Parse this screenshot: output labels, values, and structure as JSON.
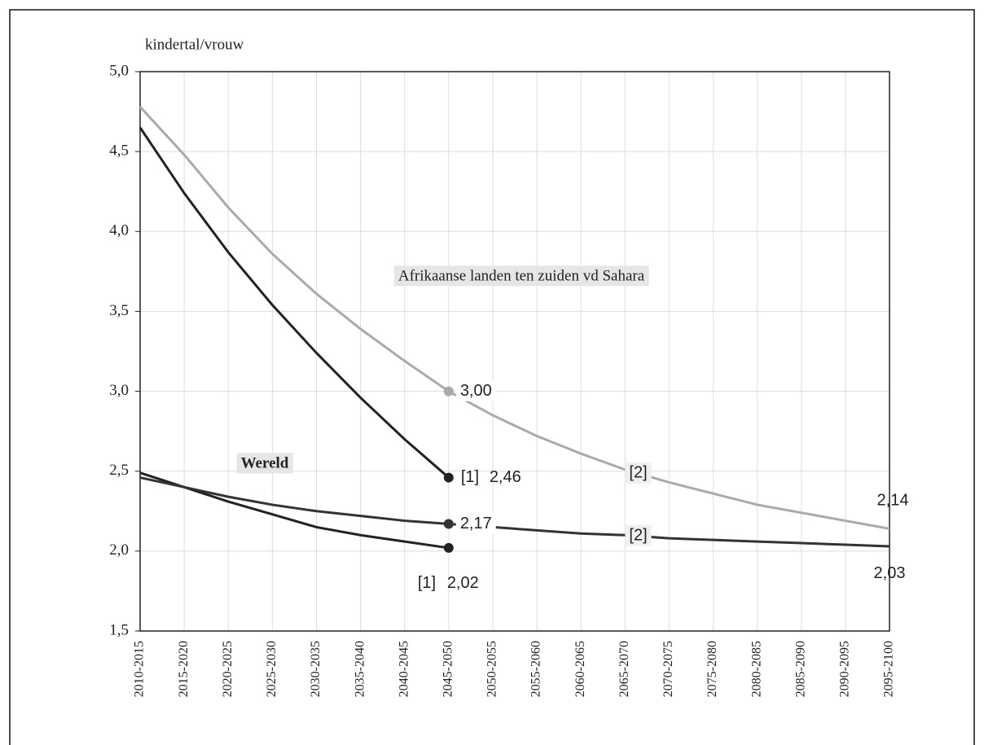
{
  "chart_data": {
    "type": "line",
    "y_label": "kindertal/vrouw",
    "categories": [
      "2010-2015",
      "2015-2020",
      "2020-2025",
      "2025-2030",
      "2030-2035",
      "2035-2040",
      "2040-2045",
      "2045-2050",
      "2050-2055",
      "2055-2060",
      "2060-2065",
      "2065-2070",
      "2070-2075",
      "2075-2080",
      "2080-2085",
      "2085-2090",
      "2090-2095",
      "2095-2100"
    ],
    "ylim": [
      1.5,
      5.0
    ],
    "yticks": [
      {
        "value": 1.5,
        "label": "1,5"
      },
      {
        "value": 2.0,
        "label": "2,0"
      },
      {
        "value": 2.5,
        "label": "2,5"
      },
      {
        "value": 3.0,
        "label": "3,0"
      },
      {
        "value": 3.5,
        "label": "3,5"
      },
      {
        "value": 4.0,
        "label": "4,0"
      },
      {
        "value": 4.5,
        "label": "4,5"
      },
      {
        "value": 5.0,
        "label": "5,0"
      }
    ],
    "grid": true,
    "groups": [
      {
        "name": "Afrikaanse landen ten zuiden vd Sahara",
        "series": [
          {
            "name": "[1]",
            "color": "#222222",
            "values": [
              4.65,
              4.24,
              3.87,
              3.54,
              3.24,
              2.96,
              2.7,
              2.46,
              null,
              null,
              null,
              null,
              null,
              null,
              null,
              null,
              null,
              null
            ],
            "value_labels": [
              null,
              null,
              null,
              null,
              null,
              null,
              null,
              "2,46",
              null,
              null,
              null,
              null,
              null,
              null,
              null,
              null,
              null,
              null
            ]
          },
          {
            "name": "[2]",
            "color": "#aaaaaa",
            "values": [
              4.78,
              4.48,
              4.15,
              3.86,
              3.61,
              3.39,
              3.19,
              3.0,
              2.85,
              2.72,
              2.61,
              2.51,
              2.43,
              2.36,
              2.29,
              2.24,
              2.19,
              2.14
            ],
            "value_labels": [
              null,
              null,
              null,
              null,
              null,
              null,
              null,
              "3,00",
              null,
              null,
              null,
              null,
              null,
              null,
              null,
              null,
              null,
              "2,14"
            ]
          }
        ]
      },
      {
        "name": "Wereld",
        "series": [
          {
            "name": "[1]",
            "color": "#222222",
            "values": [
              2.49,
              2.4,
              2.31,
              2.23,
              2.15,
              2.1,
              2.06,
              2.02,
              null,
              null,
              null,
              null,
              null,
              null,
              null,
              null,
              null,
              null
            ],
            "value_labels": [
              null,
              null,
              null,
              null,
              null,
              null,
              null,
              "2,02",
              null,
              null,
              null,
              null,
              null,
              null,
              null,
              null,
              null,
              null
            ]
          },
          {
            "name": "[2]",
            "color": "#333333",
            "values": [
              2.46,
              2.4,
              2.34,
              2.29,
              2.25,
              2.22,
              2.19,
              2.17,
              2.15,
              2.13,
              2.11,
              2.1,
              2.08,
              2.07,
              2.06,
              2.05,
              2.04,
              2.03
            ],
            "value_labels": [
              null,
              null,
              null,
              null,
              null,
              null,
              null,
              "2,17",
              null,
              null,
              null,
              null,
              null,
              null,
              null,
              null,
              null,
              "2,03"
            ]
          }
        ]
      }
    ]
  }
}
